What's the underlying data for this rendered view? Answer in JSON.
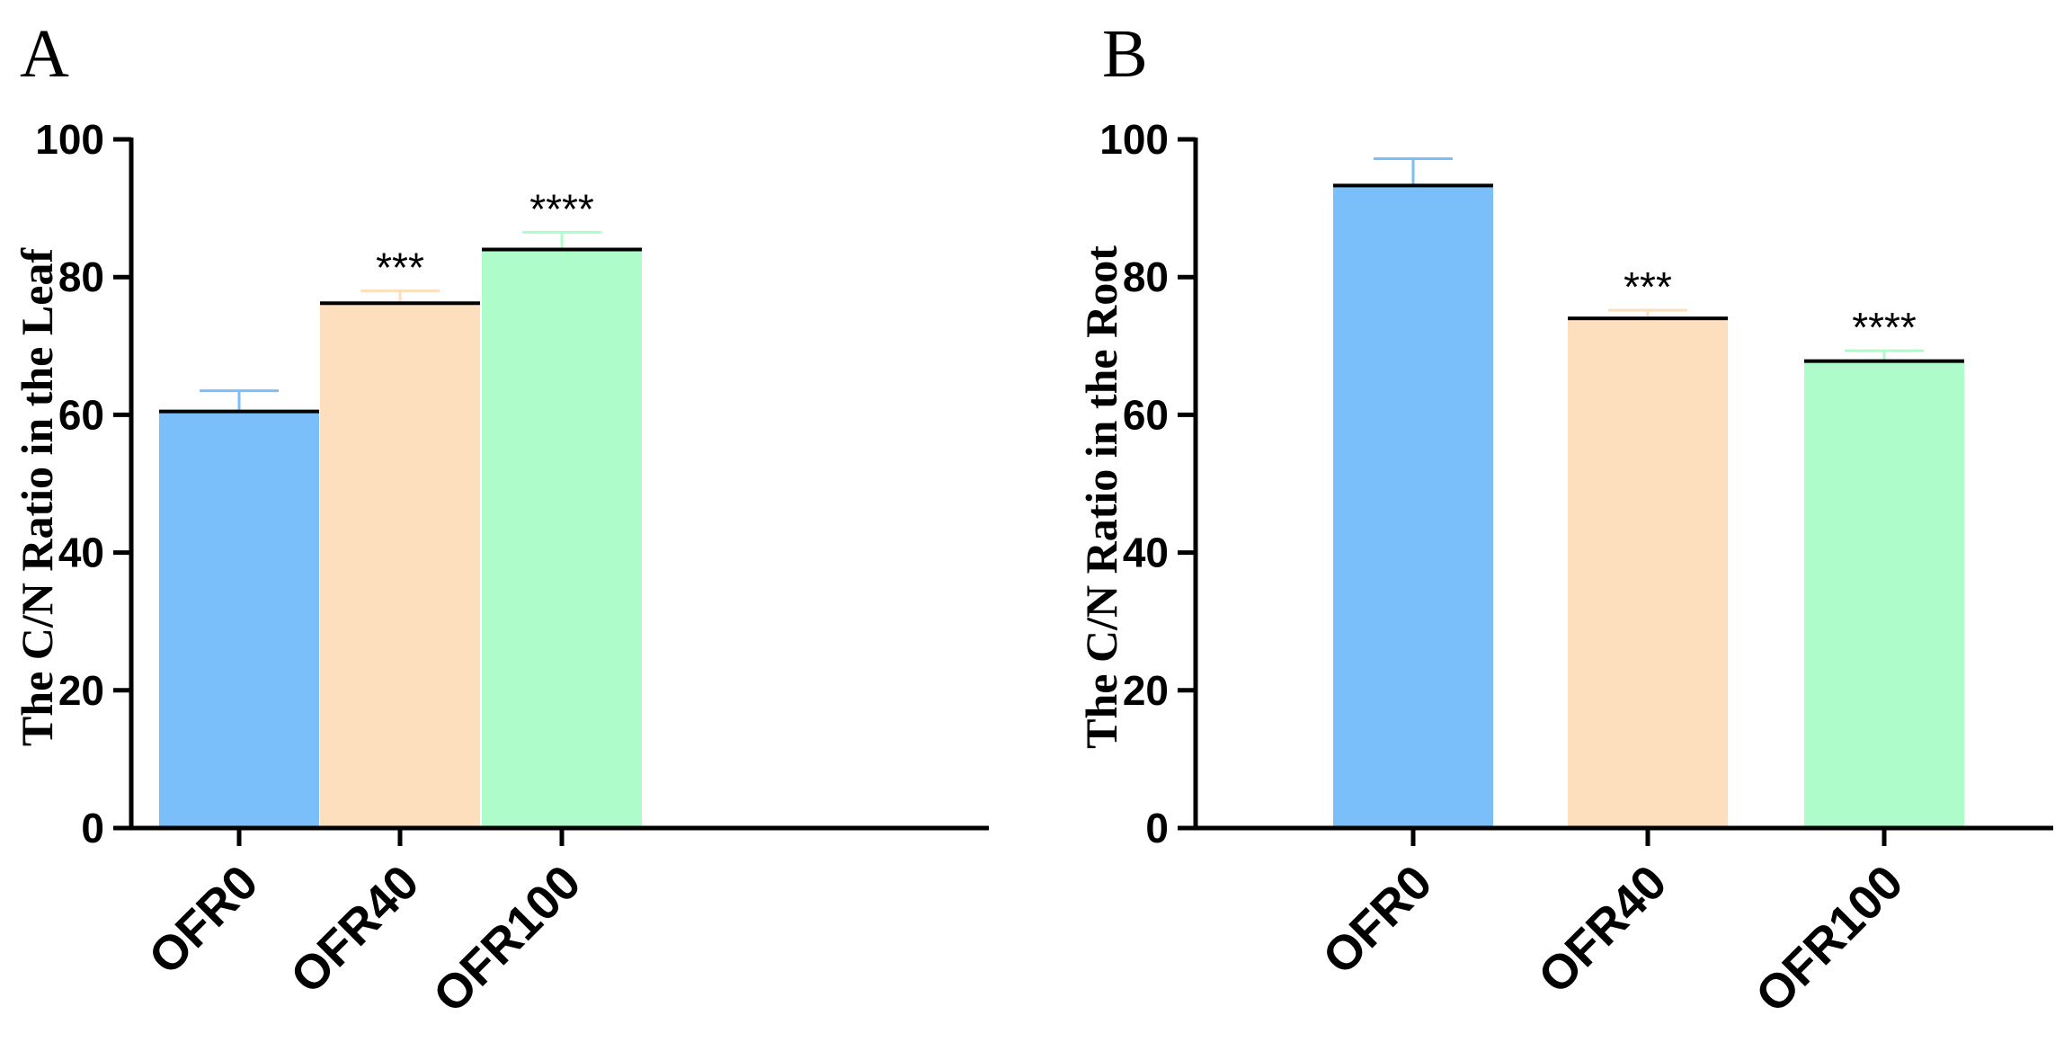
{
  "chart_data": [
    {
      "type": "bar",
      "panel": "A",
      "title": "",
      "xlabel": "",
      "ylabel": "The C/N Ratio in the Leaf",
      "ylim": [
        0,
        100
      ],
      "yticks": [
        0,
        20,
        40,
        60,
        80,
        100
      ],
      "grid": false,
      "categories": [
        "OFR0",
        "OFR40",
        "OFR100"
      ],
      "values": [
        60.5,
        76.2,
        84.0
      ],
      "errors": [
        3.0,
        1.8,
        2.5
      ],
      "significance": [
        "",
        "***",
        "****"
      ],
      "colors": [
        "#7abff9",
        "#fddfbd",
        "#aefcc9"
      ]
    },
    {
      "type": "bar",
      "panel": "B",
      "title": "",
      "xlabel": "",
      "ylabel": "The C/N Ratio in the Root",
      "ylim": [
        0,
        100
      ],
      "yticks": [
        0,
        20,
        40,
        60,
        80,
        100
      ],
      "grid": false,
      "categories": [
        "OFR0",
        "OFR40",
        "OFR100"
      ],
      "values": [
        93.3,
        74.0,
        67.8
      ],
      "errors": [
        3.9,
        1.2,
        1.5
      ],
      "significance": [
        "",
        "***",
        "****"
      ],
      "colors": [
        "#7abff9",
        "#fddfbd",
        "#aefcc9"
      ]
    }
  ]
}
